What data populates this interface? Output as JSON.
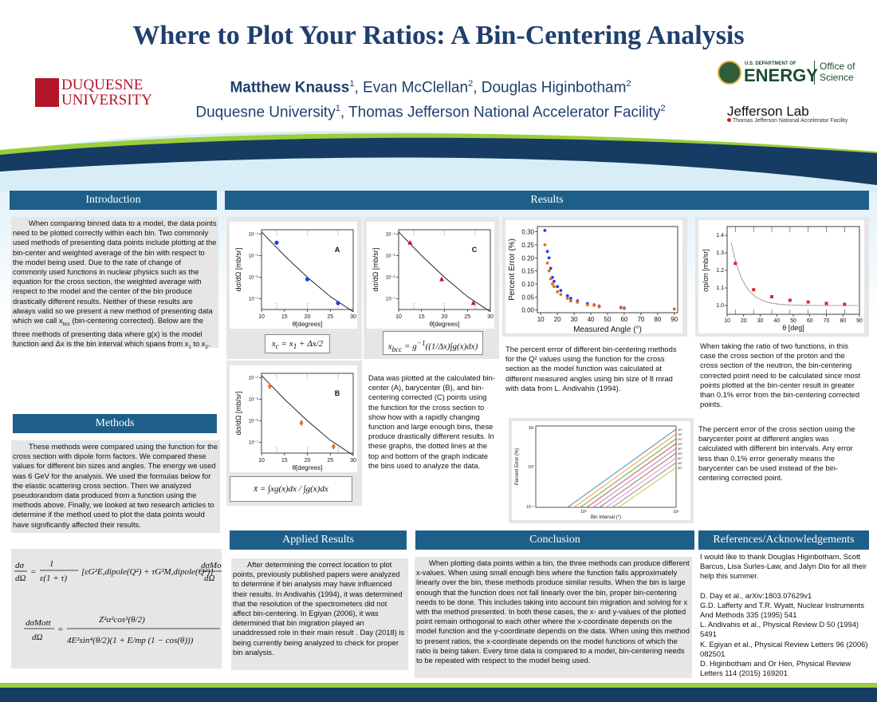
{
  "header": {
    "title": "Where to Plot Your Ratios: A Bin-Centering Analysis",
    "authors_first": "Matthew Knauss",
    "authors_first_sup": "1",
    "authors_rest": ", Evan McClellan",
    "authors_rest_sup": "2",
    "authors_last": ", Douglas Higinbotham",
    "authors_last_sup": "2",
    "affil_1": "Duquesne University",
    "affil_1_sup": "1",
    "affil_2": ", Thomas Jefferson National Accelerator Facility",
    "affil_2_sup": "2"
  },
  "logos": {
    "duquesne_line1": "DUQUESNE",
    "duquesne_line2": "UNIVERSITY",
    "doe_small": "U.S. DEPARTMENT OF",
    "doe_big": "ENERGY",
    "doe_office1": "Office of",
    "doe_office2": "Science",
    "jlab_name": "Jefferson Lab",
    "jlab_sub": "Thomas Jefferson National Accelerator Facility"
  },
  "sections": {
    "introduction": "Introduction",
    "methods": "Methods",
    "results": "Results",
    "applied": "Applied Results",
    "conclusion": "Conclusion",
    "references": "References/Acknowledgements"
  },
  "intro_text": "When comparing binned data to a model, the data points need to be plotted correctly within each bin. Two commonly used methods of presenting data points include plotting at the bin-center and weighted average of the bin with respect to the model being used. Due to the rate of change of commonly used functions in nuclear physics such as the equation for the cross section, the weighted average with respect to the model and the center of the bin produce drastically different results. Neither of these results are always valid so we present a new method of presenting data which we call x",
  "intro_text_sub": "bcc",
  "intro_text_2": " (bin-centering corrected). Below are the three methods of presenting data where g(x) is the model function and Δx is the bin interval which spans from x",
  "intro_text_sub1": "1",
  "intro_text_3": " to x",
  "intro_text_sub2": "2",
  "intro_text_4": ".",
  "methods_text": "These methods were compared using the function for the cross section with dipole form factors. We compared these values for different bin sizes and angles. The energy we used was 6 GeV for the analysis. We used the formulas below for the elastic scattering cross section. Then we analyzed pseudorandom data produced from a function using the methods above. Finally, we looked at two research articles to determine if the method used to plot the data points would have significantly affected their results.",
  "applied_text": "After determining the correct location to plot points, previously published papers were analyzed to determine if bin analysis may have influenced their results. In Andivahis (1994), it was determined that the resolution of the spectrometers did not affect bin-centering. In Egiyan (2006), it was determined that bin migration played an unaddressed role in their main result . Day (2018) is being currently being analyzed to check for proper bin analysis.",
  "conclusion_text": "When plotting data points within a bin, the three methods can produce different x-values. When using small enough bins where the function falls approximately linearly over the bin, these methods produce similar results. When the bin is large enough that the function does not fall linearly over the bin, proper bin-centering needs to be done. This includes taking into account bin migration and solving for x with the method presented. In both these cases, the x- and y-values of the plotted point remain orthogonal to each other where the x-coordinate depends on the model function and the y-coordinate depends on the data. When using this method to present ratios, the x-coordinate depends on the model functions of which the ratio is being taken. Every time data is compared to a model, bin-centering needs to be repeated with respect to the model being used.",
  "references": {
    "ack": "I would like to thank Douglas Higinbotham, Scott Barcus, Lisa Surles-Law, and Jalyn Dio for all their help this summer.",
    "ref1": "D. Day et al., arXiv:1803.07629v1",
    "ref2": "G.D. Lafferty and T.R. Wyatt, Nuclear Instruments And Methods 335 (1995) 541",
    "ref3": "L. Andivahis et al., Physical Review D 50 (1994) 5491",
    "ref4": "K. Egiyan et al., Physical Review Letters 96 (2006) 082501",
    "ref5": "D. Higinbotham and Or Hen, Physical Review Letters 114 (2015) 169201"
  },
  "results": {
    "abc_caption": "Data was plotted at the calculated bin-center (A), barycenter (B), and bin-centering corrected (C) points using the function for the cross section to show how with a rapidly changing function and large enough bins, these produce drastically different results. In these graphs, the dotted lines at the top and bottom of the graph indicate the bins used to analyze the data.",
    "percent_caption": "The percent error of different bin-centering methods for the Q² values using the function for the cross section as the model function was calculated at different measured angles using bin size of 8 mrad with data from L. Andivahis (1994).",
    "ratio_caption": "When taking the ratio of two functions, in this case the cross section of the proton and the cross section of the neutron, the bin-centering corrected point need to be calculated since most points plotted at the bin-center result in greater than 0.1% error from the bin-centering corrected points.",
    "interval_caption": "The percent error of the cross section using the barycenter point at different angles was calculated with different bin intervals. Any error less than 0.1% error generally means the barycenter can be used instead of the bin-centering corrected point.",
    "formula_a": "x_c = x_1 + Δx / 2",
    "formula_b": "x̄ = ∫ x g(x) dx / ∫ g(x) dx",
    "formula_c": "x_bcc = g⁻¹( (1/Δx) ∫ g(x) dx )"
  },
  "methods_formulas": {
    "cross_section": "dσ/dΩ = 1/(ε(1+τ)) [ εG²_E,dipole(Q²) + τG²_M,dipole(Q²) ] dσ_Mott/dΩ",
    "mott": "dσ_Mott/dΩ = Z²α²cos²(θ/2) / ( 4E²sin⁴(θ/2)(1 + (E/m_p)(1 − cos(θ))) )"
  },
  "chart_data": [
    {
      "type": "scatter",
      "panel": "A",
      "xlabel": "θ[degrees]",
      "ylabel": "dσ/dΩ [mb/sr]",
      "xlim": [
        10,
        30
      ],
      "ylog": true,
      "ylim_exp": [
        -7.5,
        -3.8
      ],
      "xticks": [
        10,
        15,
        20,
        25,
        30
      ],
      "yticks": [
        "10⁻⁴",
        "10⁻⁵",
        "10⁻⁶",
        "10⁻⁷"
      ],
      "x": [
        13.3,
        20.0,
        26.7
      ],
      "y_exp": [
        -4.4,
        -6.1,
        -7.2
      ],
      "curve_exp": [
        [
          10,
          -3.9
        ],
        [
          15,
          -5.0
        ],
        [
          20,
          -6.0
        ],
        [
          25,
          -6.9
        ],
        [
          30,
          -7.6
        ]
      ],
      "marker": "circle",
      "color": "#1f3fe0"
    },
    {
      "type": "scatter",
      "panel": "B",
      "xlabel": "θ[degrees]",
      "ylabel": "dσ/dΩ [mb/sr]",
      "xlim": [
        10,
        30
      ],
      "ylog": true,
      "ylim_exp": [
        -7.5,
        -3.8
      ],
      "xticks": [
        10,
        15,
        20,
        25,
        30
      ],
      "yticks": [
        "10⁻⁴",
        "10⁻⁵",
        "10⁻⁶",
        "10⁻⁷"
      ],
      "x": [
        11.8,
        18.7,
        25.7
      ],
      "y_exp": [
        -4.4,
        -6.1,
        -7.2
      ],
      "curve_exp": [
        [
          10,
          -3.9
        ],
        [
          15,
          -5.0
        ],
        [
          20,
          -6.0
        ],
        [
          25,
          -6.9
        ],
        [
          30,
          -7.6
        ]
      ],
      "marker": "diamond",
      "color": "#ee6a1a"
    },
    {
      "type": "scatter",
      "panel": "C",
      "xlabel": "θ[degrees]",
      "ylabel": "dσ/dΩ [mb/sr]",
      "xlim": [
        10,
        30
      ],
      "ylog": true,
      "ylim_exp": [
        -7.5,
        -3.8
      ],
      "xticks": [
        10,
        15,
        20,
        25,
        30
      ],
      "yticks": [
        "10⁻⁴",
        "10⁻⁵",
        "10⁻⁶",
        "10⁻⁷"
      ],
      "x": [
        12.5,
        19.4,
        26.3
      ],
      "y_exp": [
        -4.4,
        -6.1,
        -7.2
      ],
      "curve_exp": [
        [
          10,
          -3.9
        ],
        [
          15,
          -5.0
        ],
        [
          20,
          -6.0
        ],
        [
          25,
          -6.9
        ],
        [
          30,
          -7.6
        ]
      ],
      "marker": "triangle",
      "color": "#c8121e"
    },
    {
      "type": "scatter",
      "panel": "percent-error",
      "xlabel": "Measured Angle (°)",
      "ylabel": "Percent Error (%)",
      "xlim": [
        8,
        92
      ],
      "ylim": [
        -0.01,
        0.32
      ],
      "xticks": [
        10,
        20,
        30,
        40,
        50,
        60,
        70,
        80,
        90
      ],
      "yticks": [
        "0.00",
        "0.05",
        "0.10",
        "0.15",
        "0.20",
        "0.25",
        "0.30"
      ],
      "series": [
        {
          "color": "#1f3fe0",
          "x": [
            12.5,
            14,
            15,
            16,
            17,
            18,
            20,
            22,
            26,
            28,
            32,
            38,
            42,
            45,
            58,
            60
          ],
          "y": [
            0.305,
            0.225,
            0.2,
            0.16,
            0.125,
            0.11,
            0.09,
            0.075,
            0.055,
            0.045,
            0.035,
            0.025,
            0.02,
            0.015,
            0.01,
            0.008
          ]
        },
        {
          "color": "#ee6a1a",
          "x": [
            12.5,
            14,
            15,
            16,
            17,
            18,
            20,
            22,
            26,
            28,
            32,
            38,
            42,
            45,
            58,
            60,
            90
          ],
          "y": [
            0.25,
            0.18,
            0.15,
            0.12,
            0.1,
            0.09,
            0.07,
            0.06,
            0.045,
            0.035,
            0.03,
            0.02,
            0.018,
            0.012,
            0.008,
            0.006,
            0.004
          ]
        }
      ]
    },
    {
      "type": "scatter",
      "panel": "ratio",
      "xlabel": "θ [deg]",
      "ylabel": "σp/σn [mb/sr]",
      "xlim": [
        10,
        90
      ],
      "ylim": [
        0.95,
        1.45
      ],
      "xticks": [
        10,
        20,
        30,
        40,
        50,
        60,
        70,
        80,
        90
      ],
      "yticks": [
        "1.0",
        "1.1",
        "1.2",
        "1.3",
        "1.4"
      ],
      "x": [
        15,
        26,
        37,
        48,
        59,
        70,
        81
      ],
      "y": [
        1.24,
        1.09,
        1.05,
        1.03,
        1.02,
        1.012,
        1.007
      ],
      "color": "#e0242a"
    },
    {
      "type": "line",
      "panel": "bin-interval",
      "xlabel": "Bin Interval (°)",
      "ylabel": "Percent Error (%)",
      "xticks": [
        "10⁰",
        "10¹"
      ],
      "yticks": [
        "10⁻¹",
        "10⁰",
        "10¹"
      ],
      "series_labels": [
        "10°",
        "15°",
        "20°",
        "25°",
        "30°",
        "35°",
        "40°",
        "45°",
        "50°"
      ],
      "colors": [
        "#1f77b4",
        "#ff7f0e",
        "#2ca02c",
        "#d62728",
        "#9467bd",
        "#8c564b",
        "#e377c2",
        "#7f7f7f",
        "#bcbd22"
      ]
    }
  ]
}
